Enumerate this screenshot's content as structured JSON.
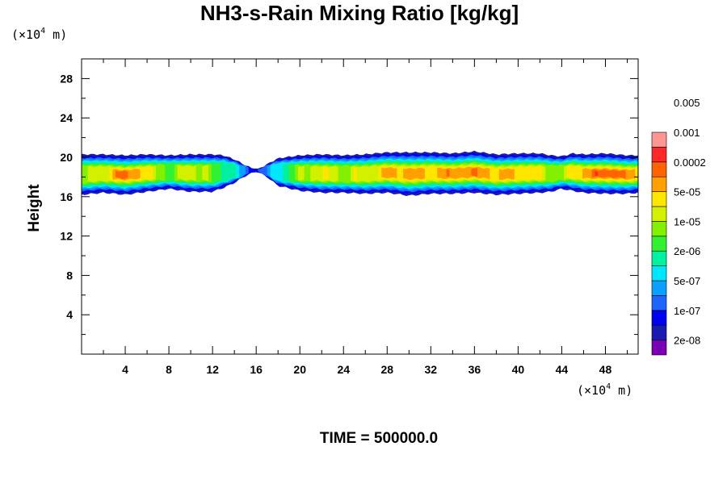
{
  "chart_data": {
    "type": "contour",
    "title": "NH3-s-Rain Mixing Ratio [kg/kg]",
    "ylabel": "Height",
    "x_unit": {
      "prefix": "(×10",
      "exp": "4",
      "suffix": " m)"
    },
    "y_unit": {
      "prefix": "(×10",
      "exp": "4",
      "suffix": " m)"
    },
    "xlim": [
      0,
      51
    ],
    "ylim": [
      0,
      30
    ],
    "x_ticks": [
      4,
      8,
      12,
      16,
      20,
      24,
      28,
      32,
      36,
      40,
      44,
      48
    ],
    "y_ticks": [
      4,
      8,
      12,
      16,
      20,
      24,
      28
    ],
    "colorbar": {
      "colors": [
        "#7a00b4",
        "#1a1ab0",
        "#0000f0",
        "#1e64ff",
        "#0aa0ff",
        "#00e6ff",
        "#00f0a0",
        "#32f032",
        "#82f000",
        "#d2f000",
        "#ffe600",
        "#ffa000",
        "#ff6400",
        "#ff2828",
        "#ff9696"
      ],
      "labels": [
        "2e-08",
        "1e-07",
        "5e-07",
        "2e-06",
        "1e-05",
        "5e-05",
        "0.0002",
        "0.001",
        "0.005"
      ]
    },
    "layer_profile": {
      "x": [
        0,
        2,
        4,
        6,
        8,
        10,
        12,
        13,
        14,
        15,
        16,
        17,
        18,
        20,
        22,
        24,
        26,
        28,
        30,
        32,
        34,
        36,
        38,
        40,
        42,
        43,
        44,
        45,
        46,
        48,
        50,
        51
      ],
      "top": [
        20.3,
        20.3,
        20.2,
        20.3,
        20.2,
        20.3,
        20.3,
        20.2,
        19.8,
        19.2,
        18.7,
        19.3,
        19.9,
        20.2,
        20.3,
        20.2,
        20.3,
        20.5,
        20.5,
        20.5,
        20.4,
        20.6,
        20.3,
        20.4,
        20.4,
        20.2,
        20.1,
        20.4,
        20.3,
        20.4,
        20.2,
        20.2
      ],
      "bottom": [
        16.2,
        16.4,
        16.2,
        16.5,
        16.8,
        16.5,
        16.5,
        16.9,
        17.4,
        18.1,
        18.6,
        18.0,
        17.1,
        16.6,
        16.4,
        16.4,
        16.3,
        16.4,
        16.1,
        16.3,
        16.3,
        16.4,
        16.2,
        16.3,
        16.4,
        16.5,
        16.8,
        16.6,
        16.4,
        16.3,
        16.3,
        16.4
      ],
      "peak_level": [
        8,
        10,
        13,
        10,
        8,
        10,
        8,
        7,
        6,
        4,
        3,
        4,
        6,
        9,
        10,
        9,
        10,
        11,
        12,
        11,
        12,
        12,
        11,
        11,
        10,
        9,
        9,
        10,
        12,
        13,
        12,
        11
      ]
    },
    "time_label": "TIME = 500000.0"
  }
}
